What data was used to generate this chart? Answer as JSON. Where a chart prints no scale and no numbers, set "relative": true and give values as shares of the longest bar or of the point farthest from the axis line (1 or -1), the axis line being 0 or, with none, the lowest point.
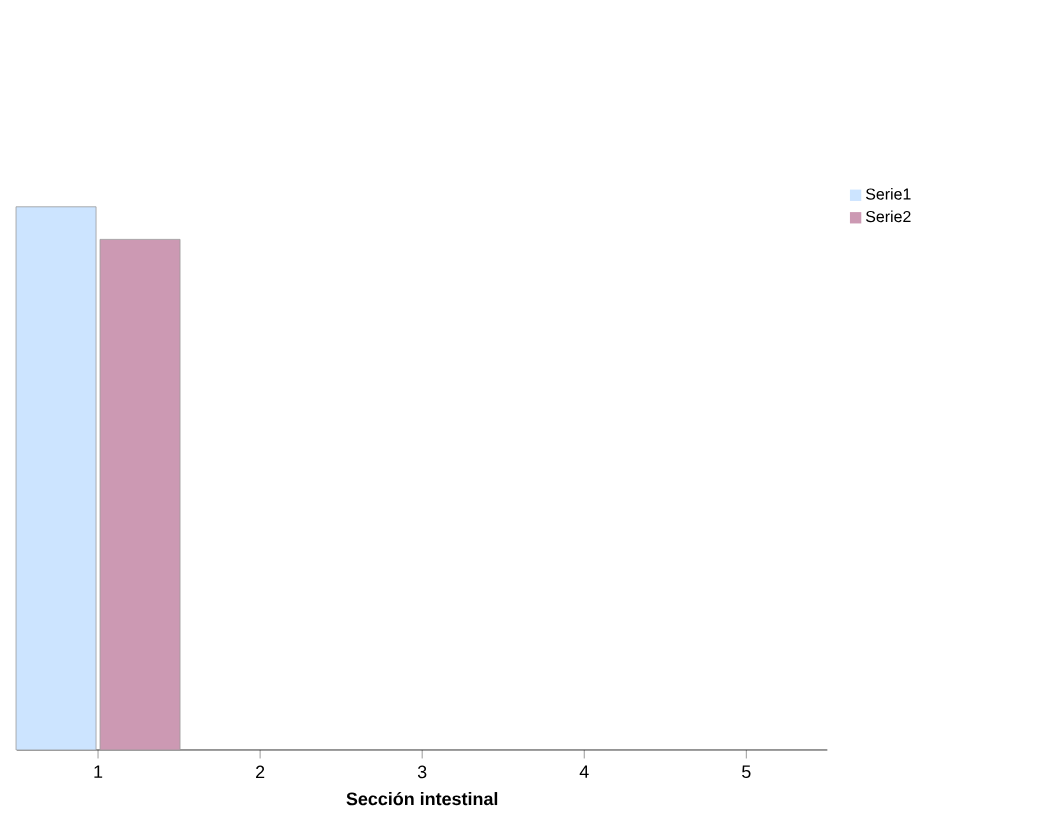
{
  "chart_data": {
    "type": "bar",
    "xlabel": "**Sección intestinal**",
    "categories": [
      "1",
      "2",
      "3",
      "4",
      "5"
    ],
    "relative": true,
    "legend": "top right",
    "series": [
      {
        "name": "Serie1",
        "color": "#cce4ff",
        "values": [
          1,
          null,
          null,
          null,
          null
        ]
      },
      {
        "name": "Serie2",
        "color": "#cc99b3",
        "values": [
          0.94,
          null,
          null,
          null,
          null
        ]
      }
    ]
  }
}
